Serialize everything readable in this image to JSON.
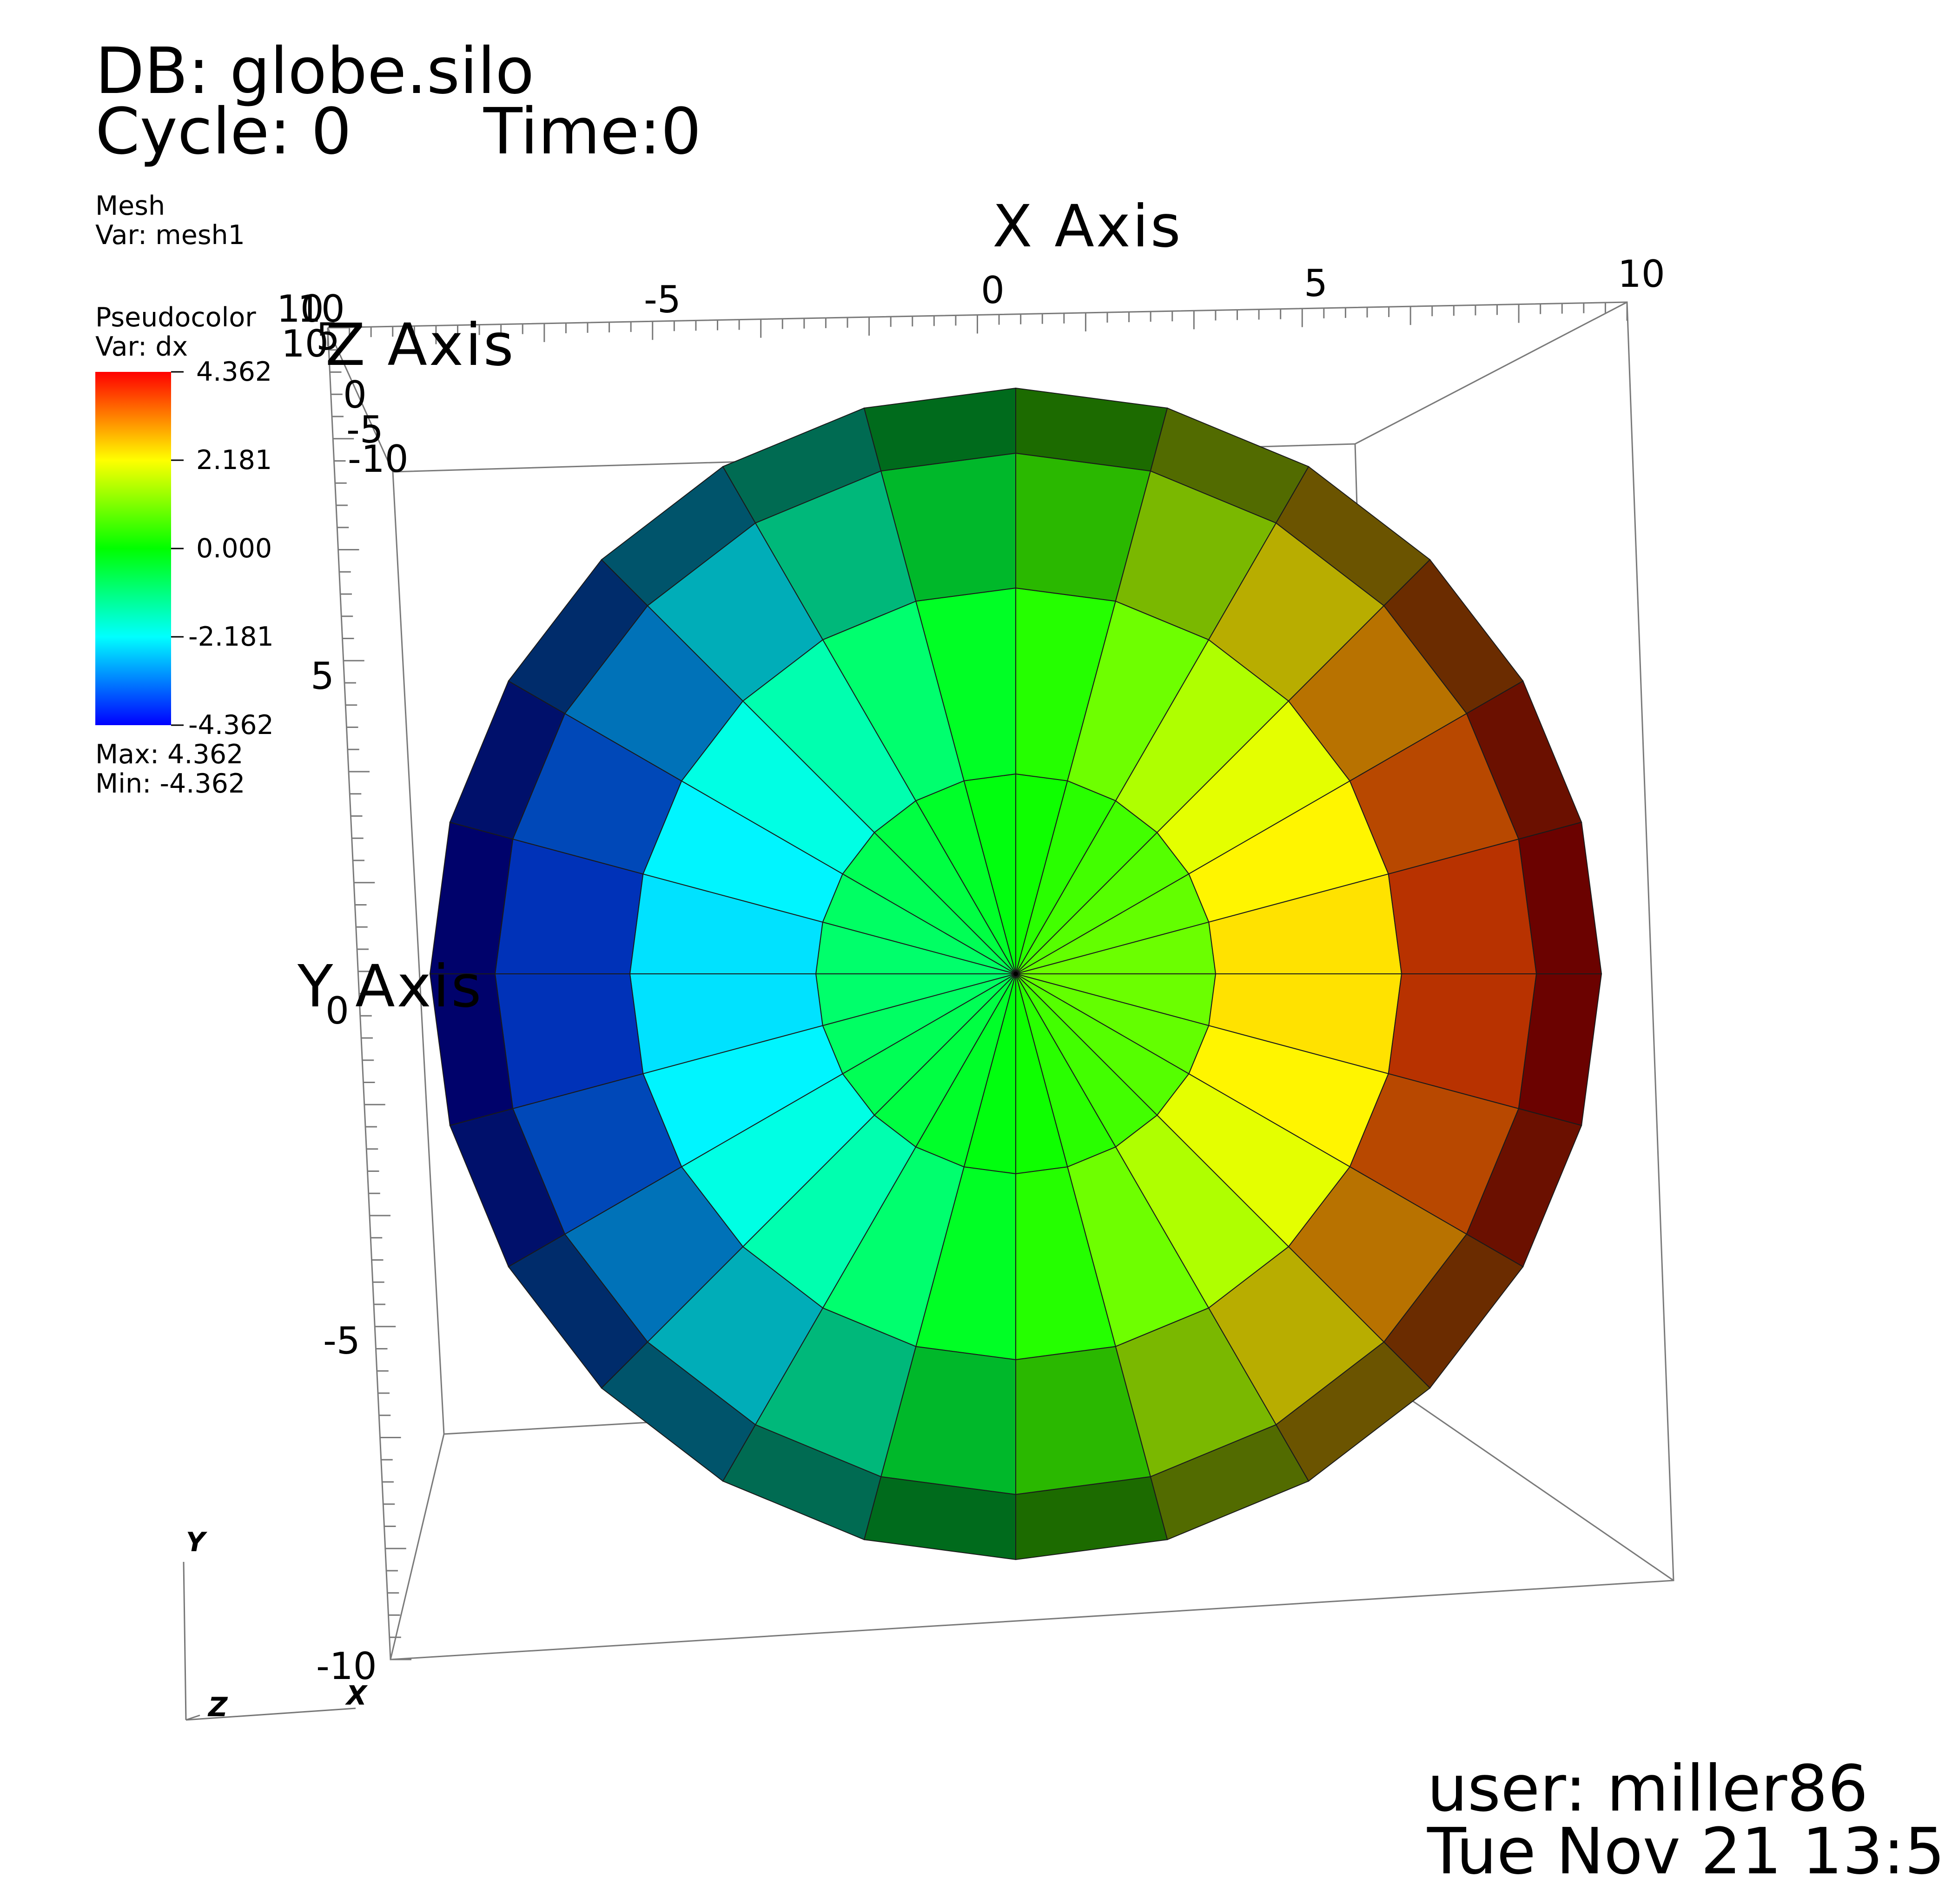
{
  "header": {
    "db": "DB: globe.silo",
    "cycle": "Cycle: 0",
    "time": "Time:0"
  },
  "mesh_legend": {
    "title": "Mesh",
    "var": "Var: mesh1"
  },
  "pseudocolor_legend": {
    "title": "Pseudocolor",
    "var": "Var: dx",
    "labels": [
      "4.362",
      "2.181",
      "0.000",
      "-2.181",
      "-4.362"
    ],
    "max": "Max:  4.362",
    "min": "Min: -4.362",
    "colors": [
      "#ff0000",
      "#ffff00",
      "#00ff00",
      "#00ffff",
      "#0000ff"
    ]
  },
  "axes": {
    "x_title": "X Axis",
    "y_title": "Y Axis",
    "z_title": "Z Axis",
    "x_ticks": [
      "-5",
      "0",
      "5",
      "10"
    ],
    "y_ticks": [
      "5",
      "0",
      "-5",
      "-10"
    ],
    "z_ticks": [
      "10",
      "10",
      "10",
      "5",
      "0",
      "-5",
      "-10"
    ]
  },
  "triad": {
    "y": "Y",
    "z": "Z",
    "x": "X"
  },
  "footer": {
    "user": "user: miller86",
    "date": "Tue Nov 21 13:5"
  },
  "scene": {
    "variable_range": [
      -4.362,
      4.362
    ],
    "sectors": 24,
    "rings": 4,
    "shading": {
      "cap": 1.0,
      "band": 0.72,
      "edge": 0.42
    }
  }
}
